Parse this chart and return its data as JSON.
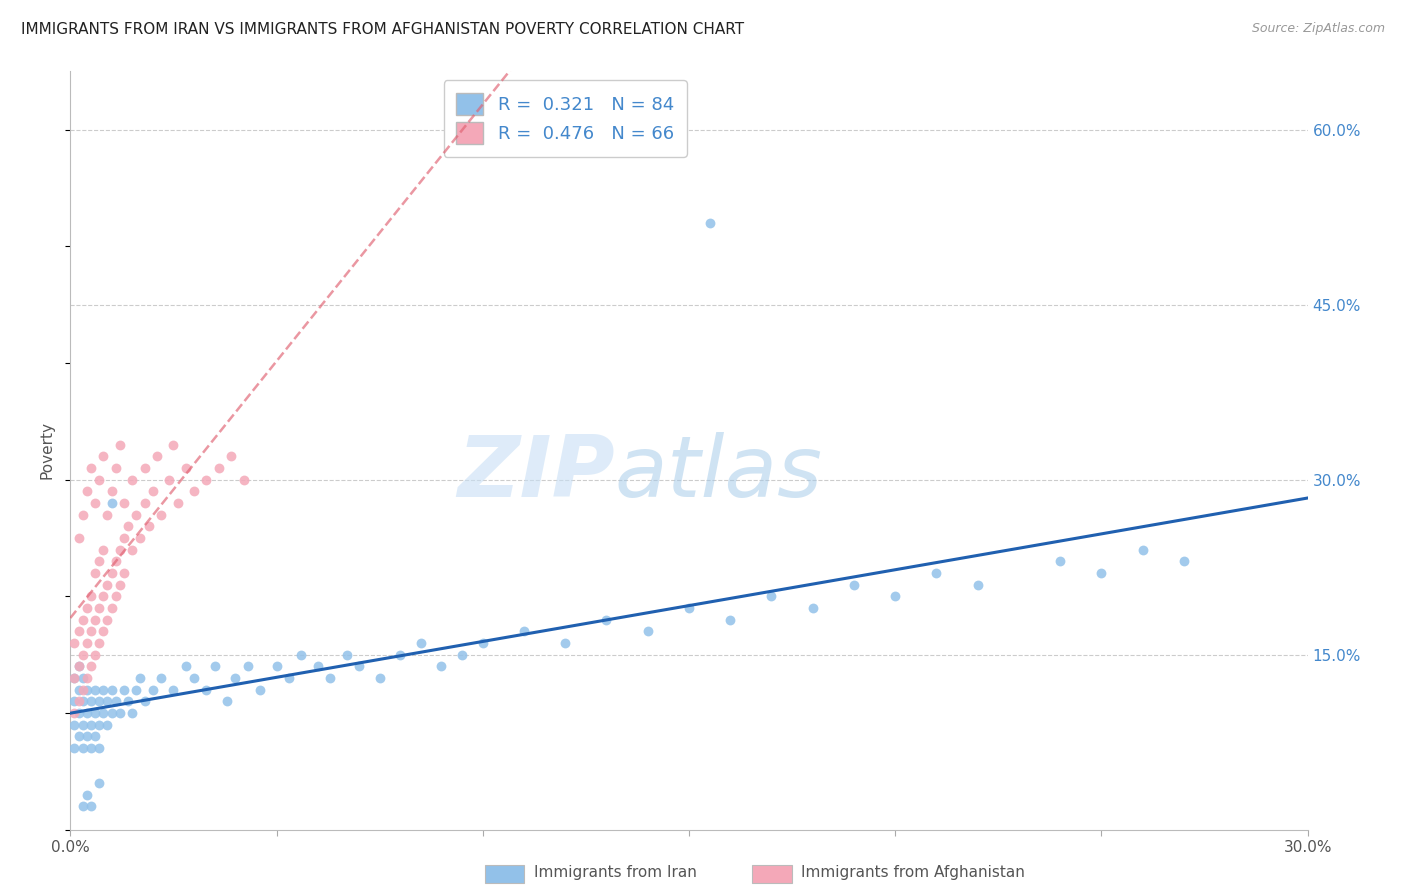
{
  "title": "IMMIGRANTS FROM IRAN VS IMMIGRANTS FROM AFGHANISTAN POVERTY CORRELATION CHART",
  "source": "Source: ZipAtlas.com",
  "ylabel_label": "Poverty",
  "xlim": [
    0.0,
    0.3
  ],
  "ylim": [
    0.0,
    0.65
  ],
  "x_tick_labels": [
    "0.0%",
    "",
    "",
    "",
    "",
    "",
    "30.0%"
  ],
  "y_ticks_right": [
    0.0,
    0.15,
    0.3,
    0.45,
    0.6
  ],
  "y_tick_labels_right": [
    "",
    "15.0%",
    "30.0%",
    "45.0%",
    "60.0%"
  ],
  "iran_R": "0.321",
  "iran_N": "84",
  "afghan_R": "0.476",
  "afghan_N": "66",
  "iran_color": "#92C1E9",
  "iran_line_color": "#2060B0",
  "afghan_color": "#F4A8B8",
  "afghan_line_color": "#E06070",
  "watermark_zip": "ZIP",
  "watermark_atlas": "atlas",
  "legend_label_iran": "Immigrants from Iran",
  "legend_label_afghan": "Immigrants from Afghanistan",
  "grid_color": "#cccccc",
  "background_color": "#ffffff",
  "iran_x": [
    0.001,
    0.001,
    0.001,
    0.001,
    0.002,
    0.002,
    0.002,
    0.002,
    0.003,
    0.003,
    0.003,
    0.003,
    0.004,
    0.004,
    0.004,
    0.005,
    0.005,
    0.005,
    0.006,
    0.006,
    0.006,
    0.007,
    0.007,
    0.007,
    0.008,
    0.008,
    0.009,
    0.009,
    0.01,
    0.01,
    0.011,
    0.012,
    0.013,
    0.014,
    0.015,
    0.016,
    0.017,
    0.018,
    0.02,
    0.022,
    0.025,
    0.028,
    0.03,
    0.033,
    0.035,
    0.038,
    0.04,
    0.043,
    0.046,
    0.05,
    0.053,
    0.056,
    0.06,
    0.063,
    0.067,
    0.07,
    0.075,
    0.08,
    0.085,
    0.09,
    0.095,
    0.1,
    0.11,
    0.12,
    0.13,
    0.14,
    0.15,
    0.16,
    0.17,
    0.18,
    0.19,
    0.2,
    0.21,
    0.22,
    0.24,
    0.25,
    0.26,
    0.27,
    0.155,
    0.01,
    0.004,
    0.007,
    0.005,
    0.003
  ],
  "iran_y": [
    0.09,
    0.11,
    0.07,
    0.13,
    0.1,
    0.12,
    0.08,
    0.14,
    0.09,
    0.11,
    0.07,
    0.13,
    0.1,
    0.08,
    0.12,
    0.09,
    0.11,
    0.07,
    0.1,
    0.12,
    0.08,
    0.09,
    0.11,
    0.07,
    0.1,
    0.12,
    0.09,
    0.11,
    0.1,
    0.12,
    0.11,
    0.1,
    0.12,
    0.11,
    0.1,
    0.12,
    0.13,
    0.11,
    0.12,
    0.13,
    0.12,
    0.14,
    0.13,
    0.12,
    0.14,
    0.11,
    0.13,
    0.14,
    0.12,
    0.14,
    0.13,
    0.15,
    0.14,
    0.13,
    0.15,
    0.14,
    0.13,
    0.15,
    0.16,
    0.14,
    0.15,
    0.16,
    0.17,
    0.16,
    0.18,
    0.17,
    0.19,
    0.18,
    0.2,
    0.19,
    0.21,
    0.2,
    0.22,
    0.21,
    0.23,
    0.22,
    0.24,
    0.23,
    0.52,
    0.28,
    0.03,
    0.04,
    0.02,
    0.02
  ],
  "afghan_x": [
    0.001,
    0.001,
    0.001,
    0.002,
    0.002,
    0.002,
    0.003,
    0.003,
    0.003,
    0.004,
    0.004,
    0.004,
    0.005,
    0.005,
    0.005,
    0.006,
    0.006,
    0.006,
    0.007,
    0.007,
    0.007,
    0.008,
    0.008,
    0.008,
    0.009,
    0.009,
    0.01,
    0.01,
    0.011,
    0.011,
    0.012,
    0.012,
    0.013,
    0.013,
    0.014,
    0.015,
    0.016,
    0.017,
    0.018,
    0.019,
    0.02,
    0.022,
    0.024,
    0.026,
    0.028,
    0.03,
    0.033,
    0.036,
    0.039,
    0.042,
    0.002,
    0.003,
    0.004,
    0.005,
    0.006,
    0.007,
    0.008,
    0.009,
    0.01,
    0.011,
    0.012,
    0.013,
    0.015,
    0.018,
    0.021,
    0.025
  ],
  "afghan_y": [
    0.13,
    0.1,
    0.16,
    0.14,
    0.11,
    0.17,
    0.15,
    0.12,
    0.18,
    0.16,
    0.13,
    0.19,
    0.17,
    0.14,
    0.2,
    0.18,
    0.15,
    0.22,
    0.19,
    0.16,
    0.23,
    0.2,
    0.17,
    0.24,
    0.21,
    0.18,
    0.22,
    0.19,
    0.23,
    0.2,
    0.24,
    0.21,
    0.25,
    0.22,
    0.26,
    0.24,
    0.27,
    0.25,
    0.28,
    0.26,
    0.29,
    0.27,
    0.3,
    0.28,
    0.31,
    0.29,
    0.3,
    0.31,
    0.32,
    0.3,
    0.25,
    0.27,
    0.29,
    0.31,
    0.28,
    0.3,
    0.32,
    0.27,
    0.29,
    0.31,
    0.33,
    0.28,
    0.3,
    0.31,
    0.32,
    0.33
  ]
}
